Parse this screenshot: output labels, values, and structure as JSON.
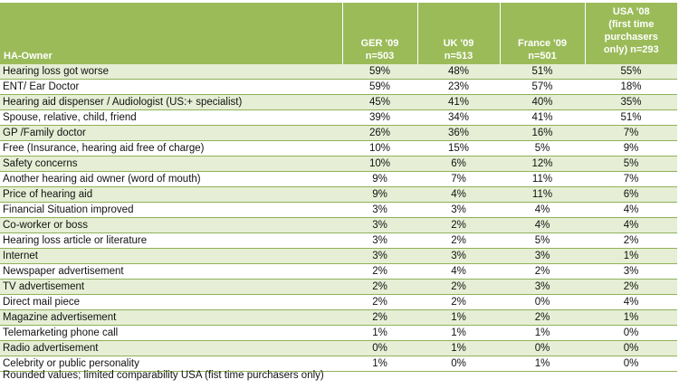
{
  "table": {
    "header": {
      "label": "HA-Owner",
      "columns": [
        [
          "GER '09",
          "n=503"
        ],
        [
          "UK '09",
          "n=513"
        ],
        [
          "France '09",
          "n=501"
        ],
        [
          "USA '08",
          "(first time",
          "purchasers",
          "only) n=293"
        ]
      ]
    },
    "rows": [
      {
        "label": "Hearing loss got worse",
        "values": [
          "59%",
          "48%",
          "51%",
          "55%"
        ]
      },
      {
        "label": "ENT/ Ear Doctor",
        "values": [
          "59%",
          "23%",
          "57%",
          "18%"
        ]
      },
      {
        "label": "Hearing aid dispenser / Audiologist (US:+ specialist)",
        "values": [
          "45%",
          "41%",
          "40%",
          "35%"
        ]
      },
      {
        "label": "Spouse, relative, child, friend",
        "values": [
          "39%",
          "34%",
          "41%",
          "51%"
        ]
      },
      {
        "label": "GP /Family doctor",
        "values": [
          "26%",
          "36%",
          "16%",
          "7%"
        ]
      },
      {
        "label": "Free (Insurance, hearing aid free of charge)",
        "values": [
          "10%",
          "15%",
          "5%",
          "9%"
        ]
      },
      {
        "label": "Safety concerns",
        "values": [
          "10%",
          "6%",
          "12%",
          "5%"
        ]
      },
      {
        "label": "Another hearing aid owner (word of mouth)",
        "values": [
          "9%",
          "7%",
          "11%",
          "7%"
        ]
      },
      {
        "label": "Price of hearing aid",
        "values": [
          "9%",
          "4%",
          "11%",
          "6%"
        ]
      },
      {
        "label": "Financial Situation improved",
        "values": [
          "3%",
          "3%",
          "4%",
          "4%"
        ]
      },
      {
        "label": "Co-worker or boss",
        "values": [
          "3%",
          "2%",
          "4%",
          "4%"
        ]
      },
      {
        "label": "Hearing loss article or  literature",
        "values": [
          "3%",
          "2%",
          "5%",
          "2%"
        ]
      },
      {
        "label": "Internet",
        "values": [
          "3%",
          "3%",
          "3%",
          "1%"
        ]
      },
      {
        "label": "Newspaper advertisement",
        "values": [
          "2%",
          "4%",
          "2%",
          "3%"
        ]
      },
      {
        "label": "TV advertisement",
        "values": [
          "2%",
          "2%",
          "3%",
          "2%"
        ]
      },
      {
        "label": "Direct mail piece",
        "values": [
          "2%",
          "2%",
          "0%",
          "4%"
        ]
      },
      {
        "label": "Magazine advertisement",
        "values": [
          "2%",
          "1%",
          "2%",
          "1%"
        ]
      },
      {
        "label": "Telemarketing phone call",
        "values": [
          "1%",
          "1%",
          "1%",
          "0%"
        ]
      },
      {
        "label": "Radio advertisement",
        "values": [
          "0%",
          "1%",
          "0%",
          "0%"
        ]
      },
      {
        "label": "Celebrity or public personality",
        "values": [
          "1%",
          "0%",
          "1%",
          "0%"
        ]
      }
    ]
  },
  "footnote": "Rounded values; limited comparability USA (fist time purchasers  only)",
  "colors": {
    "header_bg": "#9bbb59",
    "row_band": "#e6eed5",
    "row_line": "#8fb257"
  }
}
